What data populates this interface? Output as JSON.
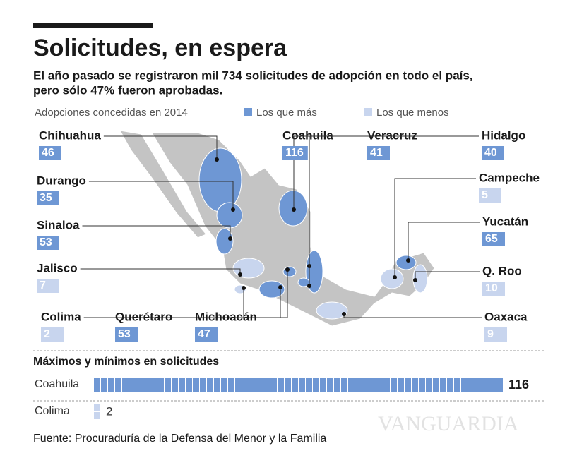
{
  "header": {
    "title": "Solicitudes, en espera",
    "subtitle_lines": [
      "El año pasado se registraron mil 734 solicitudes de adopción en todo el país,",
      "pero sólo 47% fueron aprobadas."
    ]
  },
  "legend": {
    "title": "Adopciones concedidas en 2014",
    "items": [
      {
        "label": "Los que más",
        "color": "#6e97d4"
      },
      {
        "label": "Los que menos",
        "color": "#c8d5ee"
      }
    ]
  },
  "states": [
    {
      "name": "Chihuahua",
      "value": 46,
      "group": 0
    },
    {
      "name": "Durango",
      "value": 35,
      "group": 0
    },
    {
      "name": "Sinaloa",
      "value": 53,
      "group": 0
    },
    {
      "name": "Jalisco",
      "value": 7,
      "group": 1
    },
    {
      "name": "Colima",
      "value": 2,
      "group": 1
    },
    {
      "name": "Querétaro",
      "value": 53,
      "group": 0
    },
    {
      "name": "Michoacán",
      "value": 47,
      "group": 0
    },
    {
      "name": "Coahuila",
      "value": 116,
      "group": 0
    },
    {
      "name": "Veracruz",
      "value": 41,
      "group": 0
    },
    {
      "name": "Hidalgo",
      "value": 40,
      "group": 0
    },
    {
      "name": "Campeche",
      "value": 5,
      "group": 1
    },
    {
      "name": "Yucatán",
      "value": 65,
      "group": 0
    },
    {
      "name": "Q. Roo",
      "value": 10,
      "group": 1
    },
    {
      "name": "Oaxaca",
      "value": 9,
      "group": 1
    }
  ],
  "extremes": {
    "title": "Máximos y mínimos en solicitudes",
    "rows": [
      {
        "name": "Coahuila",
        "value": 116,
        "color": "#6e97d4"
      },
      {
        "name": "Colima",
        "value": 2,
        "color": "#c8d5ee"
      }
    ]
  },
  "source": "Fuente: Procuraduría de la Defensa del Menor y la Familia"
}
